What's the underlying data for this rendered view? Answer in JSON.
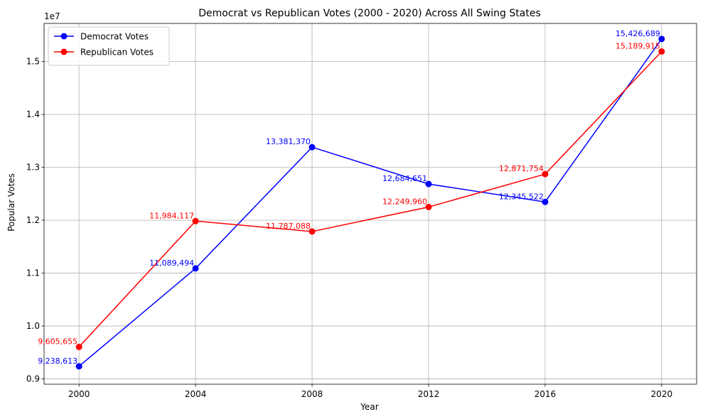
{
  "chart_data": {
    "type": "line",
    "title": "Democrat vs Republican Votes (2000 - 2020) Across All Swing States",
    "xlabel": "Year",
    "ylabel": "Popular Votes",
    "y_offset_label": "1e7",
    "x": [
      2000,
      2004,
      2008,
      2012,
      2016,
      2020
    ],
    "x_ticks": [
      "2000",
      "2004",
      "2008",
      "2012",
      "2016",
      "2020"
    ],
    "y_ticks": [
      {
        "value": 9000000,
        "label": "0.9"
      },
      {
        "value": 10000000,
        "label": "1.0"
      },
      {
        "value": 11000000,
        "label": "1.1"
      },
      {
        "value": 12000000,
        "label": "1.2"
      },
      {
        "value": 13000000,
        "label": "1.3"
      },
      {
        "value": 14000000,
        "label": "1.4"
      },
      {
        "value": 15000000,
        "label": "1.5"
      }
    ],
    "xlim": [
      1998.8,
      2021.2
    ],
    "ylim": [
      8900000,
      15720000
    ],
    "grid": true,
    "legend_position": "upper-left",
    "series": [
      {
        "name": "Democrat Votes",
        "color": "#0000ff",
        "values": [
          9238613,
          11089494,
          13381370,
          12684651,
          12345522,
          15426689
        ],
        "labels": [
          "9,238,613",
          "11,089,494",
          "13,381,370",
          "12,684,651",
          "12,345,522",
          "15,426,689"
        ]
      },
      {
        "name": "Republican Votes",
        "color": "#ff0000",
        "values": [
          9605655,
          11984117,
          11787088,
          12249960,
          12871754,
          15189915
        ],
        "labels": [
          "9,605,655",
          "11,984,117",
          "11,787,088",
          "12,249,960",
          "12,871,754",
          "15,189,915"
        ]
      }
    ]
  }
}
